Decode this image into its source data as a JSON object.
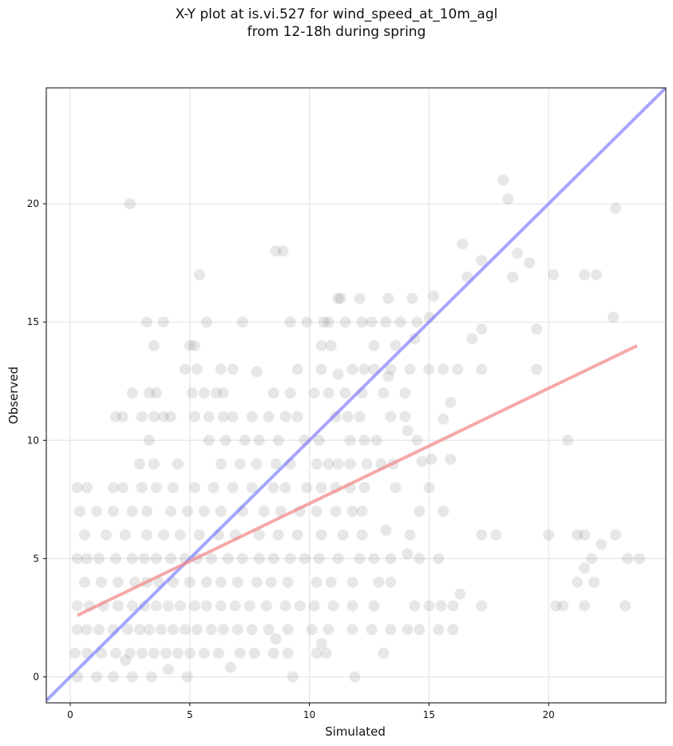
{
  "chart_data": {
    "type": "scatter",
    "title_line1": "X-Y plot at is.vi.527 for wind_speed_at_10m_agl",
    "title_line2": "from 12-18h during spring",
    "xlabel": "Simulated",
    "ylabel": "Observed",
    "xlim": [
      -1.0,
      24.9
    ],
    "ylim": [
      -1.1,
      24.9
    ],
    "xticks": [
      0,
      5,
      10,
      15,
      20
    ],
    "yticks": [
      0,
      5,
      10,
      15,
      20
    ],
    "grid": true,
    "colors": {
      "points": "#444444",
      "one_to_one": "#6b6bff",
      "fit": "#f28b8b"
    },
    "one_to_one_line": {
      "x": [
        -1.0,
        24.9
      ],
      "y": [
        -1.0,
        24.9
      ]
    },
    "fit_line": {
      "x": [
        0.3,
        23.7
      ],
      "y": [
        2.6,
        14.0
      ]
    },
    "points": [
      [
        2.5,
        20
      ],
      [
        18.1,
        21
      ],
      [
        18.3,
        20.2
      ],
      [
        22.8,
        19.8
      ],
      [
        8.6,
        18
      ],
      [
        8.9,
        18
      ],
      [
        16.4,
        18.3
      ],
      [
        17.2,
        17.6
      ],
      [
        18.7,
        17.9
      ],
      [
        19.2,
        17.5
      ],
      [
        5.4,
        17
      ],
      [
        16.6,
        16.9
      ],
      [
        18.5,
        16.9
      ],
      [
        20.2,
        17
      ],
      [
        21.5,
        17
      ],
      [
        22,
        17
      ],
      [
        11.2,
        16
      ],
      [
        11.3,
        16
      ],
      [
        12.1,
        16
      ],
      [
        13.3,
        16
      ],
      [
        14.3,
        16
      ],
      [
        15.2,
        16.1
      ],
      [
        3.2,
        15
      ],
      [
        3.9,
        15
      ],
      [
        5.7,
        15
      ],
      [
        7.2,
        15
      ],
      [
        9.2,
        15
      ],
      [
        9.9,
        15
      ],
      [
        10.6,
        15
      ],
      [
        10.8,
        15
      ],
      [
        11.5,
        15
      ],
      [
        12.2,
        15
      ],
      [
        12.6,
        15
      ],
      [
        13.2,
        15
      ],
      [
        13.8,
        15
      ],
      [
        14.5,
        15
      ],
      [
        15,
        15.2
      ],
      [
        22.7,
        15.2
      ],
      [
        3.5,
        14
      ],
      [
        5,
        14
      ],
      [
        5.2,
        14
      ],
      [
        10.5,
        14
      ],
      [
        10.9,
        14
      ],
      [
        12.7,
        14
      ],
      [
        13.6,
        14
      ],
      [
        14.4,
        14.3
      ],
      [
        16.8,
        14.3
      ],
      [
        17.2,
        14.7
      ],
      [
        19.5,
        14.7
      ],
      [
        4.8,
        13
      ],
      [
        5.3,
        13
      ],
      [
        6.3,
        13
      ],
      [
        6.8,
        13
      ],
      [
        9.5,
        13
      ],
      [
        10.5,
        13
      ],
      [
        11.8,
        13
      ],
      [
        12.3,
        13
      ],
      [
        12.7,
        13
      ],
      [
        13.4,
        13
      ],
      [
        14.2,
        13
      ],
      [
        15,
        13
      ],
      [
        15.6,
        13
      ],
      [
        16.2,
        13
      ],
      [
        17.2,
        13
      ],
      [
        19.5,
        13
      ],
      [
        7.8,
        12.9
      ],
      [
        11.2,
        12.8
      ],
      [
        13.3,
        12.7
      ],
      [
        2.6,
        12
      ],
      [
        3.3,
        12
      ],
      [
        3.6,
        12
      ],
      [
        5.1,
        12
      ],
      [
        5.6,
        12
      ],
      [
        6.1,
        12
      ],
      [
        6.4,
        12
      ],
      [
        8.5,
        12
      ],
      [
        9.2,
        12
      ],
      [
        10.2,
        12
      ],
      [
        10.8,
        12
      ],
      [
        11.5,
        12
      ],
      [
        12.2,
        12
      ],
      [
        13.1,
        12
      ],
      [
        14,
        12
      ],
      [
        15.9,
        11.6
      ],
      [
        1.9,
        11
      ],
      [
        2.2,
        11
      ],
      [
        3,
        11
      ],
      [
        3.5,
        11
      ],
      [
        3.9,
        11
      ],
      [
        4.2,
        11
      ],
      [
        5.2,
        11
      ],
      [
        5.8,
        11
      ],
      [
        6.4,
        11
      ],
      [
        6.8,
        11
      ],
      [
        7.6,
        11
      ],
      [
        8.3,
        11
      ],
      [
        9,
        11
      ],
      [
        9.5,
        11
      ],
      [
        11.1,
        11
      ],
      [
        11.6,
        11
      ],
      [
        12.1,
        11
      ],
      [
        13.4,
        11
      ],
      [
        14,
        11
      ],
      [
        15.6,
        10.9
      ],
      [
        3.3,
        10
      ],
      [
        5.8,
        10
      ],
      [
        6.5,
        10
      ],
      [
        7.3,
        10
      ],
      [
        7.9,
        10
      ],
      [
        8.7,
        10
      ],
      [
        9.8,
        10
      ],
      [
        10.4,
        10
      ],
      [
        11.7,
        10
      ],
      [
        12.3,
        10
      ],
      [
        12.8,
        10
      ],
      [
        14.1,
        10.4
      ],
      [
        14.5,
        10
      ],
      [
        20.8,
        10
      ],
      [
        2.9,
        9
      ],
      [
        3.5,
        9
      ],
      [
        4.5,
        9
      ],
      [
        6.3,
        9
      ],
      [
        7.1,
        9
      ],
      [
        7.8,
        9
      ],
      [
        8.6,
        9
      ],
      [
        9.2,
        9
      ],
      [
        10.3,
        9
      ],
      [
        10.8,
        9
      ],
      [
        11.2,
        9
      ],
      [
        11.7,
        9
      ],
      [
        12.4,
        9
      ],
      [
        13,
        9
      ],
      [
        13.5,
        9
      ],
      [
        14.7,
        9.1
      ],
      [
        15.1,
        9.2
      ],
      [
        15.9,
        9.2
      ],
      [
        0.3,
        8
      ],
      [
        0.7,
        8
      ],
      [
        1.8,
        8
      ],
      [
        2.2,
        8
      ],
      [
        3,
        8
      ],
      [
        3.6,
        8
      ],
      [
        4.3,
        8
      ],
      [
        5.2,
        8
      ],
      [
        6,
        8
      ],
      [
        6.8,
        8
      ],
      [
        7.6,
        8
      ],
      [
        8.5,
        8
      ],
      [
        9,
        8
      ],
      [
        9.9,
        8
      ],
      [
        10.5,
        8
      ],
      [
        11.1,
        8
      ],
      [
        11.7,
        8
      ],
      [
        12.3,
        8
      ],
      [
        13.6,
        8
      ],
      [
        15,
        8
      ],
      [
        0.4,
        7
      ],
      [
        1.1,
        7
      ],
      [
        1.8,
        7
      ],
      [
        2.6,
        7
      ],
      [
        3.2,
        7
      ],
      [
        4.2,
        7
      ],
      [
        4.9,
        7
      ],
      [
        5.6,
        7
      ],
      [
        6.3,
        7
      ],
      [
        7.2,
        7
      ],
      [
        8.1,
        7
      ],
      [
        8.8,
        7
      ],
      [
        9.6,
        7
      ],
      [
        10.3,
        7
      ],
      [
        11.1,
        7
      ],
      [
        11.8,
        7
      ],
      [
        12.2,
        7
      ],
      [
        14.6,
        7
      ],
      [
        15.6,
        7
      ],
      [
        0.6,
        6
      ],
      [
        1.5,
        6
      ],
      [
        2.3,
        6
      ],
      [
        3.2,
        6
      ],
      [
        3.9,
        6
      ],
      [
        4.6,
        6
      ],
      [
        5.4,
        6
      ],
      [
        6.2,
        6
      ],
      [
        6.9,
        6
      ],
      [
        7.9,
        6
      ],
      [
        8.7,
        6
      ],
      [
        9.5,
        6
      ],
      [
        10.5,
        6
      ],
      [
        11.4,
        6
      ],
      [
        12.2,
        6
      ],
      [
        13.2,
        6.2
      ],
      [
        14.2,
        6
      ],
      [
        17.2,
        6
      ],
      [
        17.8,
        6
      ],
      [
        20,
        6
      ],
      [
        21.2,
        6
      ],
      [
        21.5,
        6
      ],
      [
        22.8,
        6
      ],
      [
        22.2,
        5.6
      ],
      [
        0.3,
        5
      ],
      [
        0.7,
        5
      ],
      [
        1.2,
        5
      ],
      [
        1.9,
        5
      ],
      [
        2.6,
        5
      ],
      [
        3.1,
        5
      ],
      [
        3.6,
        5
      ],
      [
        4.2,
        5
      ],
      [
        4.8,
        5
      ],
      [
        5.3,
        5
      ],
      [
        5.9,
        5
      ],
      [
        6.6,
        5
      ],
      [
        7.2,
        5
      ],
      [
        7.9,
        5
      ],
      [
        8.5,
        5
      ],
      [
        9.2,
        5
      ],
      [
        9.8,
        5
      ],
      [
        10.4,
        5
      ],
      [
        11.2,
        5
      ],
      [
        12.1,
        5
      ],
      [
        12.7,
        5
      ],
      [
        13.4,
        5
      ],
      [
        14.1,
        5.2
      ],
      [
        14.6,
        5
      ],
      [
        15.4,
        5
      ],
      [
        21.5,
        4.6
      ],
      [
        21.8,
        5
      ],
      [
        23.3,
        5
      ],
      [
        23.8,
        5
      ],
      [
        0.6,
        4
      ],
      [
        1.3,
        4
      ],
      [
        2,
        4
      ],
      [
        2.7,
        4
      ],
      [
        3.2,
        4
      ],
      [
        3.7,
        4
      ],
      [
        4.3,
        4
      ],
      [
        5,
        4
      ],
      [
        5.7,
        4
      ],
      [
        6.3,
        4
      ],
      [
        7,
        4
      ],
      [
        7.8,
        4
      ],
      [
        8.4,
        4
      ],
      [
        9.1,
        4
      ],
      [
        10.3,
        4
      ],
      [
        10.9,
        4
      ],
      [
        11.8,
        4
      ],
      [
        12.9,
        4
      ],
      [
        13.4,
        4
      ],
      [
        21.2,
        4
      ],
      [
        21.9,
        4
      ],
      [
        0.3,
        3
      ],
      [
        0.8,
        3
      ],
      [
        1.4,
        3
      ],
      [
        2,
        3
      ],
      [
        2.6,
        3
      ],
      [
        3.1,
        3
      ],
      [
        3.6,
        3
      ],
      [
        4.1,
        3
      ],
      [
        4.6,
        3
      ],
      [
        5.2,
        3
      ],
      [
        5.7,
        3
      ],
      [
        6.3,
        3
      ],
      [
        6.9,
        3
      ],
      [
        7.5,
        3
      ],
      [
        8.2,
        3
      ],
      [
        9,
        3
      ],
      [
        9.6,
        3
      ],
      [
        10.2,
        3
      ],
      [
        11,
        3
      ],
      [
        11.8,
        3
      ],
      [
        12.7,
        3
      ],
      [
        14.4,
        3
      ],
      [
        15,
        3
      ],
      [
        15.5,
        3
      ],
      [
        16,
        3
      ],
      [
        17.2,
        3
      ],
      [
        20.3,
        3
      ],
      [
        20.6,
        3
      ],
      [
        21.5,
        3
      ],
      [
        23.2,
        3
      ],
      [
        16.3,
        3.5
      ],
      [
        0.3,
        2
      ],
      [
        0.7,
        2
      ],
      [
        1.2,
        2
      ],
      [
        1.8,
        2
      ],
      [
        2.4,
        2
      ],
      [
        2.9,
        2
      ],
      [
        3.3,
        2
      ],
      [
        3.8,
        2
      ],
      [
        4.3,
        2
      ],
      [
        4.8,
        2
      ],
      [
        5.3,
        2
      ],
      [
        5.9,
        2
      ],
      [
        6.4,
        2
      ],
      [
        7,
        2
      ],
      [
        7.6,
        2
      ],
      [
        8.3,
        2
      ],
      [
        9.1,
        2
      ],
      [
        10.1,
        2
      ],
      [
        10.8,
        2
      ],
      [
        11.8,
        2
      ],
      [
        12.6,
        2
      ],
      [
        13.4,
        2
      ],
      [
        14.1,
        2
      ],
      [
        14.6,
        2
      ],
      [
        15.4,
        2
      ],
      [
        16,
        2
      ],
      [
        0.2,
        1
      ],
      [
        0.7,
        1
      ],
      [
        1.3,
        1
      ],
      [
        1.9,
        1
      ],
      [
        2.5,
        1
      ],
      [
        3,
        1
      ],
      [
        3.5,
        1
      ],
      [
        4,
        1
      ],
      [
        4.5,
        1
      ],
      [
        5,
        1
      ],
      [
        5.6,
        1
      ],
      [
        6.2,
        1
      ],
      [
        7.1,
        1
      ],
      [
        7.7,
        1
      ],
      [
        8.5,
        1
      ],
      [
        9.1,
        1
      ],
      [
        10.3,
        1
      ],
      [
        10.7,
        1
      ],
      [
        13.1,
        1
      ],
      [
        10.5,
        1.4
      ],
      [
        8.6,
        1.6
      ],
      [
        0.3,
        0
      ],
      [
        1.1,
        0
      ],
      [
        1.8,
        0
      ],
      [
        2.6,
        0
      ],
      [
        3.4,
        0
      ],
      [
        4.9,
        0
      ],
      [
        9.3,
        0
      ],
      [
        11.9,
        0
      ],
      [
        2.3,
        0.7
      ],
      [
        4.1,
        0.3
      ],
      [
        6.7,
        0.4
      ]
    ]
  }
}
